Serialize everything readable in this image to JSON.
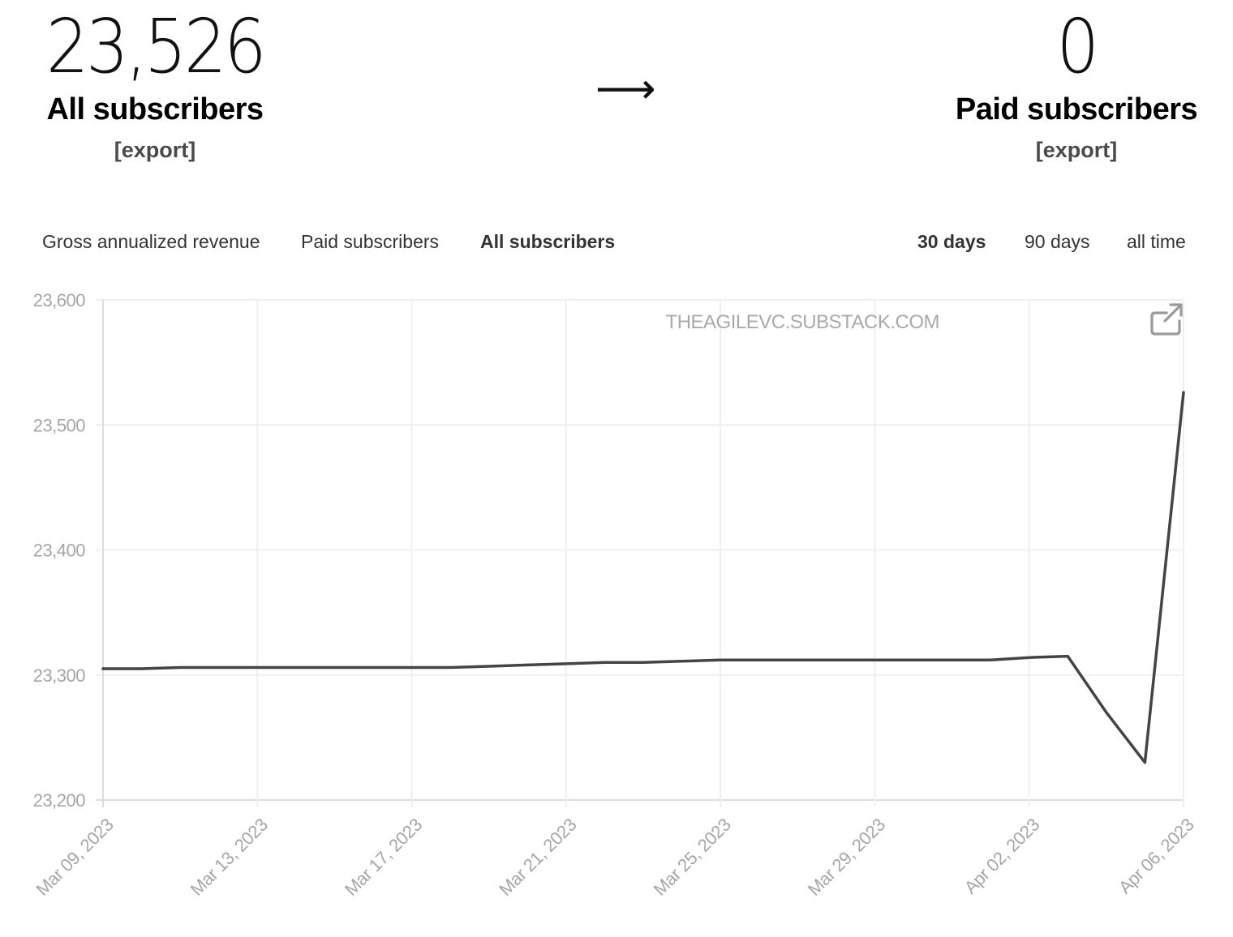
{
  "summary": {
    "all_count": "23,526",
    "all_label": "All subscribers",
    "all_export": "[export]",
    "arrow": "⟶",
    "paid_count": "0",
    "paid_label": "Paid subscribers",
    "paid_export": "[export]"
  },
  "metric_tabs": [
    "Gross annualized revenue",
    "Paid subscribers",
    "All subscribers"
  ],
  "active_metric": "All subscribers",
  "range_tabs": [
    "30 days",
    "90 days",
    "all time"
  ],
  "active_range": "30 days",
  "chart_data": {
    "type": "line",
    "watermark": "THEAGILEVC.SUBSTACK.COM",
    "x_ticks": [
      "Mar 09, 2023",
      "Mar 13, 2023",
      "Mar 17, 2023",
      "Mar 21, 2023",
      "Mar 25, 2023",
      "Mar 29, 2023",
      "Apr 02, 2023",
      "Apr 06, 2023"
    ],
    "y_ticks": [
      "23,200",
      "23,300",
      "23,400",
      "23,500",
      "23,600"
    ],
    "ylim": [
      23200,
      23600
    ],
    "xlim": [
      "2023-03-09",
      "2023-04-06"
    ],
    "grid": true,
    "line_color": "#444444",
    "series": [
      {
        "x": [
          "2023-03-09",
          "2023-03-10",
          "2023-03-11",
          "2023-03-12",
          "2023-03-13",
          "2023-03-14",
          "2023-03-15",
          "2023-03-16",
          "2023-03-17",
          "2023-03-18",
          "2023-03-19",
          "2023-03-20",
          "2023-03-21",
          "2023-03-22",
          "2023-03-23",
          "2023-03-24",
          "2023-03-25",
          "2023-03-26",
          "2023-03-27",
          "2023-03-28",
          "2023-03-29",
          "2023-03-30",
          "2023-03-31",
          "2023-04-01",
          "2023-04-02",
          "2023-04-03",
          "2023-04-04",
          "2023-04-05",
          "2023-04-06"
        ],
        "values": [
          23305,
          23305,
          23306,
          23306,
          23306,
          23306,
          23306,
          23306,
          23306,
          23306,
          23307,
          23308,
          23309,
          23310,
          23310,
          23311,
          23312,
          23312,
          23312,
          23312,
          23312,
          23312,
          23312,
          23312,
          23314,
          23315,
          23270,
          23230,
          23526
        ]
      }
    ]
  }
}
